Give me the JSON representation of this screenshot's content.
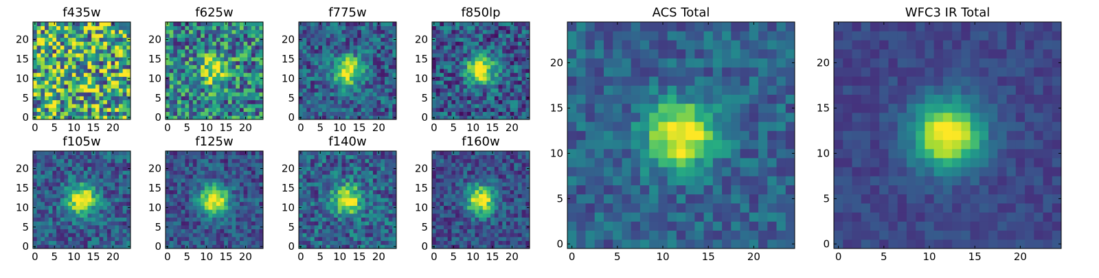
{
  "figure": {
    "panels": [
      {
        "id": "f435w",
        "title": "f435w"
      },
      {
        "id": "f625w",
        "title": "f625w"
      },
      {
        "id": "f775w",
        "title": "f775w"
      },
      {
        "id": "f850lp",
        "title": "f850lp"
      },
      {
        "id": "f105w",
        "title": "f105w"
      },
      {
        "id": "f125w",
        "title": "f125w"
      },
      {
        "id": "f140w",
        "title": "f140w"
      },
      {
        "id": "f160w",
        "title": "f160w"
      },
      {
        "id": "acs-total",
        "title": "ACS Total"
      },
      {
        "id": "wfc3-ir-total",
        "title": "WFC3 IR Total"
      }
    ]
  },
  "chart_data": [
    {
      "type": "heatmap",
      "title": "f435w",
      "xlabel": "",
      "ylabel": "",
      "grid_size": [
        25,
        25
      ],
      "xlim": [
        0,
        24
      ],
      "ylim": [
        0,
        24
      ],
      "x_ticks": [
        0,
        5,
        10,
        15,
        20
      ],
      "y_ticks": [
        0,
        5,
        10,
        15,
        20
      ],
      "colormap": "viridis",
      "source_center": [
        12,
        12
      ],
      "source_strength": 0.0,
      "noise_level": 0.95,
      "background_level": 0.62
    },
    {
      "type": "heatmap",
      "title": "f625w",
      "xlabel": "",
      "ylabel": "",
      "grid_size": [
        25,
        25
      ],
      "xlim": [
        0,
        24
      ],
      "ylim": [
        0,
        24
      ],
      "x_ticks": [
        0,
        5,
        10,
        15,
        20
      ],
      "y_ticks": [
        0,
        5,
        10,
        15,
        20
      ],
      "colormap": "viridis",
      "source_center": [
        12,
        12
      ],
      "source_strength": 0.55,
      "noise_level": 0.7,
      "background_level": 0.45
    },
    {
      "type": "heatmap",
      "title": "f775w",
      "xlabel": "",
      "ylabel": "",
      "grid_size": [
        25,
        25
      ],
      "xlim": [
        0,
        24
      ],
      "ylim": [
        0,
        24
      ],
      "x_ticks": [
        0,
        5,
        10,
        15,
        20
      ],
      "y_ticks": [
        0,
        5,
        10,
        15,
        20
      ],
      "colormap": "viridis",
      "source_center": [
        12,
        12
      ],
      "source_strength": 0.75,
      "noise_level": 0.45,
      "background_level": 0.3
    },
    {
      "type": "heatmap",
      "title": "f850lp",
      "xlabel": "",
      "ylabel": "",
      "grid_size": [
        25,
        25
      ],
      "xlim": [
        0,
        24
      ],
      "ylim": [
        0,
        24
      ],
      "x_ticks": [
        0,
        5,
        10,
        15,
        20
      ],
      "y_ticks": [
        0,
        5,
        10,
        15,
        20
      ],
      "colormap": "viridis",
      "source_center": [
        12,
        12
      ],
      "source_strength": 0.75,
      "noise_level": 0.5,
      "background_level": 0.28
    },
    {
      "type": "heatmap",
      "title": "f105w",
      "xlabel": "",
      "ylabel": "",
      "grid_size": [
        25,
        25
      ],
      "xlim": [
        0,
        24
      ],
      "ylim": [
        0,
        24
      ],
      "x_ticks": [
        0,
        5,
        10,
        15,
        20
      ],
      "y_ticks": [
        0,
        5,
        10,
        15,
        20
      ],
      "colormap": "viridis",
      "source_center": [
        12,
        12
      ],
      "source_strength": 0.78,
      "noise_level": 0.4,
      "background_level": 0.3
    },
    {
      "type": "heatmap",
      "title": "f125w",
      "xlabel": "",
      "ylabel": "",
      "grid_size": [
        25,
        25
      ],
      "xlim": [
        0,
        24
      ],
      "ylim": [
        0,
        24
      ],
      "x_ticks": [
        0,
        5,
        10,
        15,
        20
      ],
      "y_ticks": [
        0,
        5,
        10,
        15,
        20
      ],
      "colormap": "viridis",
      "source_center": [
        12,
        12
      ],
      "source_strength": 0.8,
      "noise_level": 0.35,
      "background_level": 0.26
    },
    {
      "type": "heatmap",
      "title": "f140w",
      "xlabel": "",
      "ylabel": "",
      "grid_size": [
        25,
        25
      ],
      "xlim": [
        0,
        24
      ],
      "ylim": [
        0,
        24
      ],
      "x_ticks": [
        0,
        5,
        10,
        15,
        20
      ],
      "y_ticks": [
        0,
        5,
        10,
        15,
        20
      ],
      "colormap": "viridis",
      "source_center": [
        12,
        12
      ],
      "source_strength": 0.7,
      "noise_level": 0.45,
      "background_level": 0.32
    },
    {
      "type": "heatmap",
      "title": "f160w",
      "xlabel": "",
      "ylabel": "",
      "grid_size": [
        25,
        25
      ],
      "xlim": [
        0,
        24
      ],
      "ylim": [
        0,
        24
      ],
      "x_ticks": [
        0,
        5,
        10,
        15,
        20
      ],
      "y_ticks": [
        0,
        5,
        10,
        15,
        20
      ],
      "colormap": "viridis",
      "source_center": [
        12,
        12
      ],
      "source_strength": 0.78,
      "noise_level": 0.35,
      "background_level": 0.25
    },
    {
      "type": "heatmap",
      "title": "ACS Total",
      "xlabel": "",
      "ylabel": "",
      "grid_size": [
        25,
        25
      ],
      "xlim": [
        0,
        24
      ],
      "ylim": [
        0,
        24
      ],
      "x_ticks": [
        0,
        5,
        10,
        15,
        20
      ],
      "y_ticks": [
        0,
        5,
        10,
        15,
        20
      ],
      "colormap": "viridis",
      "source_center": [
        12,
        12
      ],
      "source_strength": 0.75,
      "noise_level": 0.3,
      "background_level": 0.32
    },
    {
      "type": "heatmap",
      "title": "WFC3 IR Total",
      "xlabel": "",
      "ylabel": "",
      "grid_size": [
        25,
        25
      ],
      "xlim": [
        0,
        24
      ],
      "ylim": [
        0,
        24
      ],
      "x_ticks": [
        0,
        5,
        10,
        15,
        20
      ],
      "y_ticks": [
        0,
        5,
        10,
        15,
        20
      ],
      "colormap": "viridis",
      "source_center": [
        12,
        12
      ],
      "source_strength": 0.85,
      "noise_level": 0.15,
      "background_level": 0.22
    }
  ]
}
